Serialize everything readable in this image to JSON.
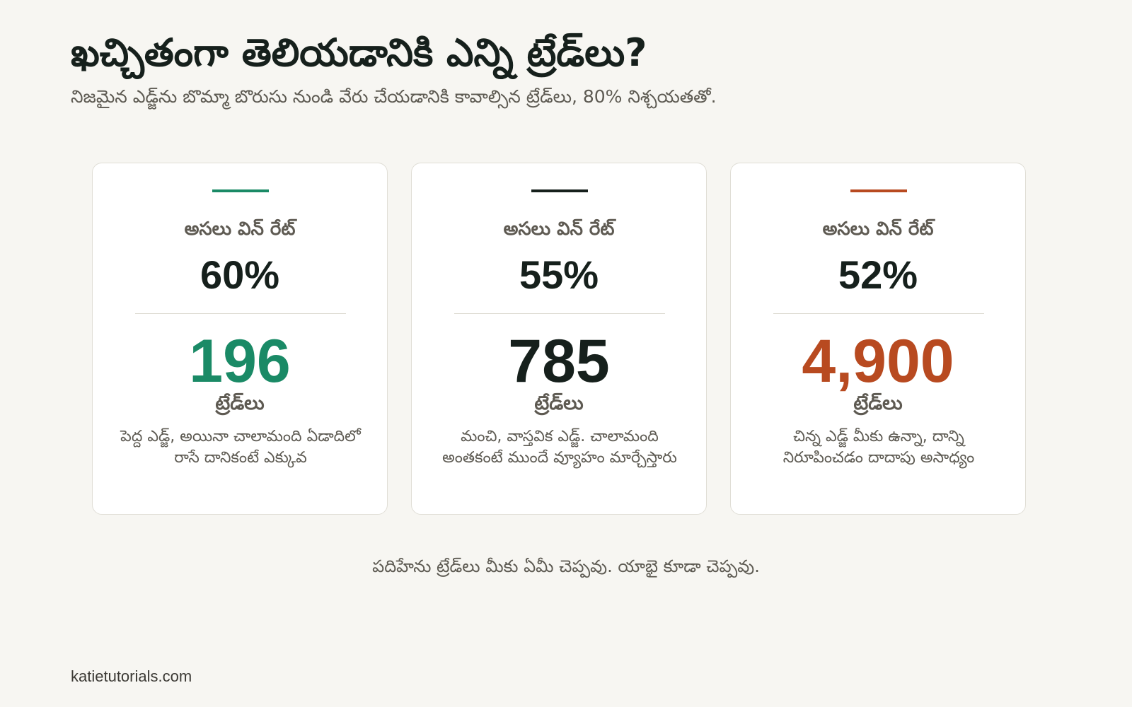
{
  "header": {
    "title": "ఖచ్చితంగా తెలియడానికి ఎన్ని ట్రేడ్‌లు?",
    "subtitle": "నిజమైన ఎడ్జ్‌ను బొమ్మా బొరుసు నుండి వేరు చేయడానికి కావాల్సిన ట్రేడ్‌లు, 80% నిశ్చయతతో."
  },
  "cards": [
    {
      "label": "అసలు విన్ రేట్",
      "rate": "60%",
      "count": "196",
      "unit": "ట్రేడ్‌లు",
      "note": "పెద్ద ఎడ్జ్, అయినా చాలామంది ఏడాదిలో రాసే దానికంటే ఎక్కువ",
      "accent_color": "#1a8a66"
    },
    {
      "label": "అసలు విన్ రేట్",
      "rate": "55%",
      "count": "785",
      "unit": "ట్రేడ్‌లు",
      "note": "మంచి, వాస్తవిక ఎడ్జ్. చాలామంది అంతకంటే ముందే వ్యూహం మార్చేస్తారు",
      "accent_color": "#16201c"
    },
    {
      "label": "అసలు విన్ రేట్",
      "rate": "52%",
      "count": "4,900",
      "unit": "ట్రేడ్‌లు",
      "note": "చిన్న ఎడ్జ్ మీకు ఉన్నా, దాన్ని నిరూపించడం దాదాపు అసాధ్యం",
      "accent_color": "#b84a20"
    }
  ],
  "footer": {
    "note": "పదిహేను ట్రేడ్‌లు మీకు ఏమీ చెప్పవు. యాభై కూడా చెప్పవు.",
    "site": "katietutorials.com"
  }
}
